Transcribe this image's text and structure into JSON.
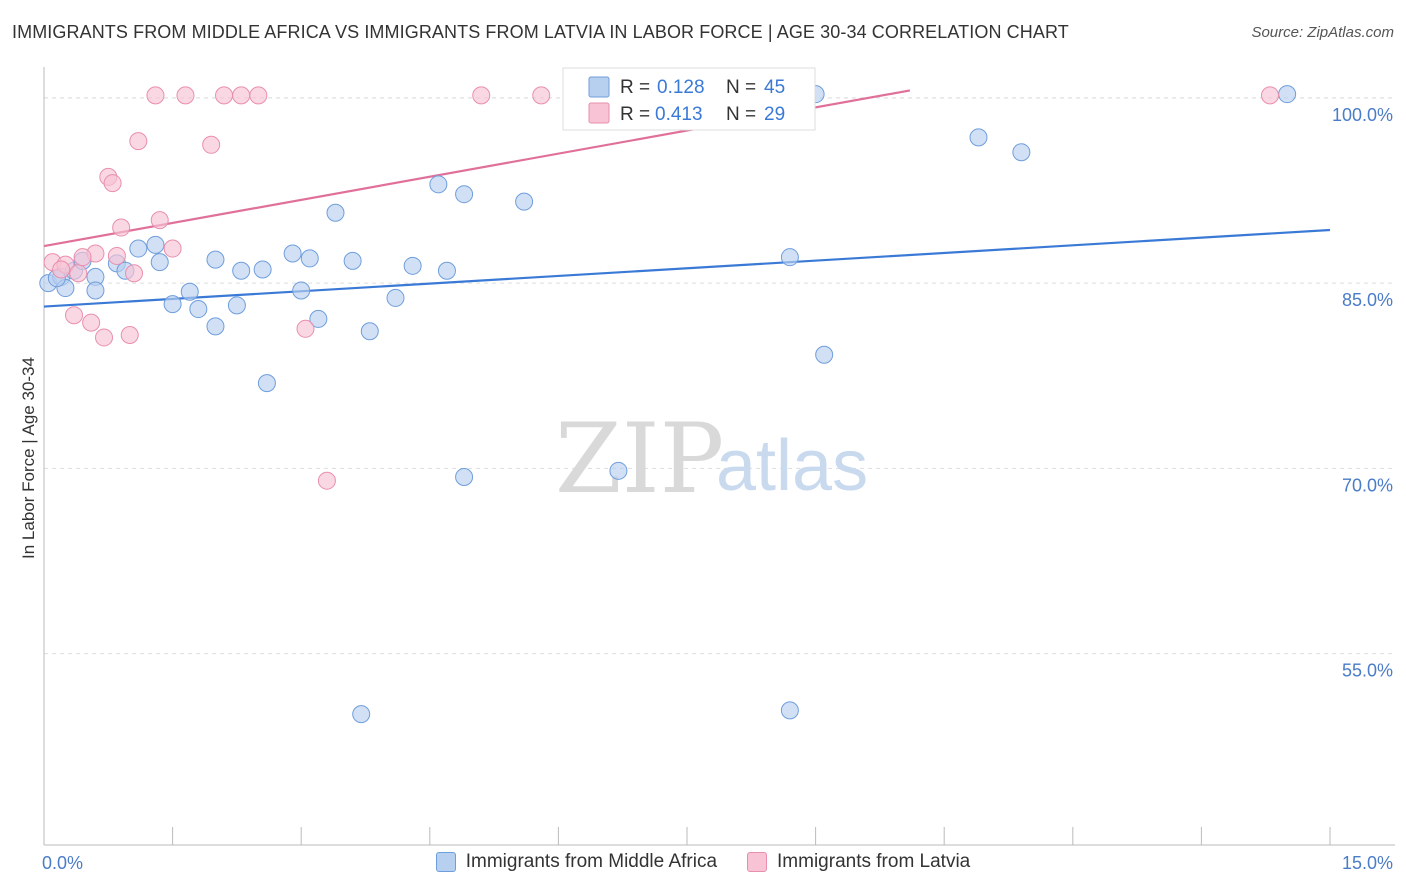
{
  "title": "IMMIGRANTS FROM MIDDLE AFRICA VS IMMIGRANTS FROM LATVIA IN LABOR FORCE | AGE 30-34 CORRELATION CHART",
  "source": "Source: ZipAtlas.com",
  "watermark": {
    "zip": "ZIP",
    "atlas": "atlas"
  },
  "colors": {
    "blue_fill": "#b8d0f0",
    "blue_stroke": "#6f9edc",
    "blue_line": "#3a7ad6",
    "pink_fill": "#f8c3d4",
    "pink_stroke": "#e98fae",
    "pink_line": "#e0709a",
    "tick_text": "#4a7cc7",
    "grid": "#dddddd"
  },
  "legend": {
    "r_label": "R =",
    "n_label": "N =",
    "series": [
      {
        "r": "0.128",
        "n": "45"
      },
      {
        "r": "0.413",
        "n": "29"
      }
    ]
  },
  "chart_data": {
    "type": "scatter",
    "xlabel": "",
    "ylabel": "In Labor Force | Age 30-34",
    "xlim": [
      0,
      15
    ],
    "ylim": [
      39.5,
      102.5
    ],
    "x_tick_labels": [
      "0.0%",
      "15.0%"
    ],
    "y_ticks": [
      55,
      70,
      85,
      100
    ],
    "y_tick_labels": [
      "55.0%",
      "70.0%",
      "85.0%",
      "100.0%"
    ],
    "series": [
      {
        "name": "Immigrants from Middle Africa",
        "trend": {
          "x0": 0,
          "y0": 83.1,
          "x1": 15,
          "y1": 89.3
        },
        "points": [
          [
            0.05,
            85.0
          ],
          [
            0.2,
            85.5
          ],
          [
            0.35,
            86.0
          ],
          [
            0.25,
            84.6
          ],
          [
            0.45,
            86.8
          ],
          [
            0.6,
            85.5
          ],
          [
            0.85,
            86.6
          ],
          [
            0.95,
            86.0
          ],
          [
            1.1,
            87.8
          ],
          [
            1.35,
            86.7
          ],
          [
            1.5,
            83.3
          ],
          [
            1.8,
            82.9
          ],
          [
            2.0,
            81.5
          ],
          [
            1.7,
            84.3
          ],
          [
            2.3,
            86.0
          ],
          [
            2.55,
            86.1
          ],
          [
            2.25,
            83.2
          ],
          [
            2.9,
            87.4
          ],
          [
            3.1,
            87.0
          ],
          [
            3.0,
            84.4
          ],
          [
            3.2,
            82.1
          ],
          [
            3.4,
            90.7
          ],
          [
            3.6,
            86.8
          ],
          [
            3.8,
            81.1
          ],
          [
            4.1,
            83.8
          ],
          [
            4.3,
            86.4
          ],
          [
            4.6,
            93.0
          ],
          [
            4.7,
            86.0
          ],
          [
            4.9,
            92.2
          ],
          [
            5.6,
            91.6
          ],
          [
            8.7,
            87.1
          ],
          [
            9.0,
            100.3
          ],
          [
            10.9,
            96.8
          ],
          [
            11.4,
            95.6
          ],
          [
            14.5,
            100.3
          ],
          [
            2.6,
            76.9
          ],
          [
            0.6,
            84.4
          ],
          [
            1.3,
            88.1
          ],
          [
            0.15,
            85.4
          ],
          [
            3.7,
            50.1
          ],
          [
            4.9,
            69.3
          ],
          [
            6.7,
            69.8
          ],
          [
            8.7,
            50.4
          ],
          [
            9.1,
            79.2
          ],
          [
            2.0,
            86.9
          ]
        ]
      },
      {
        "name": "Immigrants from Latvia",
        "trend": {
          "x0": 0,
          "y0": 88.0,
          "x1": 10.1,
          "y1": 100.6
        },
        "points": [
          [
            0.1,
            86.7
          ],
          [
            0.25,
            86.5
          ],
          [
            0.35,
            82.4
          ],
          [
            0.4,
            85.8
          ],
          [
            0.55,
            81.8
          ],
          [
            0.7,
            80.6
          ],
          [
            0.75,
            93.6
          ],
          [
            0.8,
            93.1
          ],
          [
            0.9,
            89.5
          ],
          [
            1.0,
            80.8
          ],
          [
            1.1,
            96.5
          ],
          [
            1.35,
            90.1
          ],
          [
            1.5,
            87.8
          ],
          [
            1.3,
            100.2
          ],
          [
            1.65,
            100.2
          ],
          [
            1.95,
            96.2
          ],
          [
            2.1,
            100.2
          ],
          [
            2.3,
            100.2
          ],
          [
            2.5,
            100.2
          ],
          [
            3.05,
            81.3
          ],
          [
            3.3,
            69.0
          ],
          [
            5.1,
            100.2
          ],
          [
            5.8,
            100.2
          ],
          [
            14.3,
            100.2
          ],
          [
            0.6,
            87.4
          ],
          [
            0.2,
            86.1
          ],
          [
            0.45,
            87.1
          ],
          [
            1.05,
            85.8
          ],
          [
            0.85,
            87.2
          ]
        ]
      }
    ]
  },
  "bottom_legend": [
    "Immigrants from Middle Africa",
    "Immigrants from Latvia"
  ]
}
